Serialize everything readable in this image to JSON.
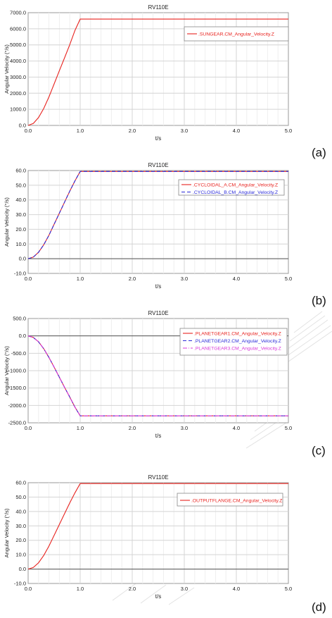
{
  "chart_data": [
    {
      "type": "line",
      "panel_label": "(a)",
      "title": "RV110E",
      "xlabel": "t/s",
      "ylabel": "Angular Velocity (°/s)",
      "xlim": [
        0,
        5
      ],
      "ylim": [
        0,
        7000
      ],
      "xticks": [
        "0.0",
        "1.0",
        "2.0",
        "3.0",
        "4.0",
        "5.0"
      ],
      "yticks": [
        "0.0",
        "1000.0",
        "2000.0",
        "3000.0",
        "4000.0",
        "5000.0",
        "6000.0",
        "7000.0"
      ],
      "grid": true,
      "legend_position": "top-right",
      "series": [
        {
          "name": ".SUNGEAR.CM_Angular_Velocity.Z",
          "color": "#e8231f",
          "dash": "solid",
          "x": [
            0,
            0.1,
            0.2,
            0.3,
            0.4,
            0.5,
            0.6,
            0.7,
            0.8,
            0.9,
            1.0,
            2.0,
            3.0,
            4.0,
            5.0
          ],
          "y": [
            0,
            126,
            490,
            1056,
            1770,
            2580,
            3400,
            4200,
            5020,
            5900,
            6600,
            6600,
            6600,
            6600,
            6600
          ]
        }
      ]
    },
    {
      "type": "line",
      "panel_label": "(b)",
      "title": "RV110E",
      "xlabel": "t/s",
      "ylabel": "Angular Velocity (°/s)",
      "xlim": [
        0,
        5
      ],
      "ylim": [
        -10,
        60
      ],
      "xticks": [
        "0.0",
        "1.0",
        "2.0",
        "3.0",
        "4.0",
        "5.0"
      ],
      "yticks": [
        "-10.0",
        "0.0",
        "10.0",
        "20.0",
        "30.0",
        "40.0",
        "50.0",
        "60.0"
      ],
      "grid": true,
      "legend_position": "top-right",
      "series": [
        {
          "name": ".CYCLOIDAL_A.CM_Angular_Velocity.Z",
          "color": "#e8231f",
          "dash": "solid",
          "x": [
            0,
            0.1,
            0.2,
            0.3,
            0.4,
            0.5,
            0.6,
            0.7,
            0.8,
            0.9,
            1.0,
            2.0,
            3.0,
            4.0,
            5.0
          ],
          "y": [
            0,
            1.1,
            4.4,
            9.5,
            16.0,
            23.5,
            31.0,
            38.5,
            46.0,
            53.0,
            59.4,
            59.4,
            59.4,
            59.4,
            59.4
          ]
        },
        {
          "name": ".CYCLOIDAL_B.CM_Angular_Velocity.Z",
          "color": "#2a2ad8",
          "dash": "dashed",
          "x": [
            0,
            0.1,
            0.2,
            0.3,
            0.4,
            0.5,
            0.6,
            0.7,
            0.8,
            0.9,
            1.0,
            2.0,
            3.0,
            4.0,
            5.0
          ],
          "y": [
            0,
            1.1,
            4.4,
            9.5,
            16.0,
            23.5,
            31.0,
            38.5,
            46.0,
            53.0,
            59.4,
            59.4,
            59.4,
            59.4,
            59.4
          ]
        }
      ]
    },
    {
      "type": "line",
      "panel_label": "(c)",
      "title": "RV110E",
      "xlabel": "t/s",
      "ylabel": "Angular Velocity (°/s)",
      "xlim": [
        0,
        5
      ],
      "ylim": [
        -2500,
        500
      ],
      "xticks": [
        "0.0",
        "1.0",
        "2.0",
        "3.0",
        "4.0",
        "5.0"
      ],
      "yticks": [
        "-2500.0",
        "-2000.0",
        "-1500.0",
        "-1000.0",
        "-500.0",
        "0.0",
        "500.0"
      ],
      "grid": true,
      "legend_position": "top-right",
      "series": [
        {
          "name": ".PLANETGEAR1.CM_Angular_Velocity.Z",
          "color": "#e8231f",
          "dash": "solid",
          "x": [
            0,
            0.1,
            0.2,
            0.3,
            0.4,
            0.5,
            0.6,
            0.7,
            0.8,
            0.9,
            1.0,
            2.0,
            3.0,
            4.0,
            5.0
          ],
          "y": [
            0,
            -45,
            -170,
            -370,
            -620,
            -900,
            -1190,
            -1480,
            -1760,
            -2050,
            -2300,
            -2300,
            -2300,
            -2300,
            -2300
          ]
        },
        {
          "name": ".PLANETGEAR2.CM_Angular_Velocity.Z",
          "color": "#2a2ad8",
          "dash": "dashed",
          "x": [
            0,
            0.1,
            0.2,
            0.3,
            0.4,
            0.5,
            0.6,
            0.7,
            0.8,
            0.9,
            1.0,
            2.0,
            3.0,
            4.0,
            5.0
          ],
          "y": [
            0,
            -45,
            -170,
            -370,
            -620,
            -900,
            -1190,
            -1480,
            -1760,
            -2050,
            -2300,
            -2300,
            -2300,
            -2300,
            -2300
          ]
        },
        {
          "name": ".PLANETGEAR3.CM_Angular_Velocity.Z",
          "color": "#d83ad8",
          "dash": "dotdash",
          "x": [
            0,
            0.1,
            0.2,
            0.3,
            0.4,
            0.5,
            0.6,
            0.7,
            0.8,
            0.9,
            1.0,
            2.0,
            3.0,
            4.0,
            5.0
          ],
          "y": [
            0,
            -45,
            -170,
            -370,
            -620,
            -900,
            -1190,
            -1480,
            -1760,
            -2050,
            -2300,
            -2300,
            -2300,
            -2300,
            -2300
          ]
        }
      ]
    },
    {
      "type": "line",
      "panel_label": "(d)",
      "title": "RV110E",
      "xlabel": "t/s",
      "ylabel": "Angular Velocity (°/s)",
      "xlim": [
        0,
        5
      ],
      "ylim": [
        -10,
        60
      ],
      "xticks": [
        "0.0",
        "1.0",
        "2.0",
        "3.0",
        "4.0",
        "5.0"
      ],
      "yticks": [
        "-10.0",
        "0.0",
        "10.0",
        "20.0",
        "30.0",
        "40.0",
        "50.0",
        "60.0"
      ],
      "grid": true,
      "legend_position": "top-right",
      "series": [
        {
          "name": ".OUTPUTFLANGE.CM_Angular_Velocity.Z",
          "color": "#e8231f",
          "dash": "solid",
          "x": [
            0,
            0.1,
            0.2,
            0.3,
            0.4,
            0.5,
            0.6,
            0.7,
            0.8,
            0.9,
            1.0,
            2.0,
            3.0,
            4.0,
            5.0
          ],
          "y": [
            0,
            1.1,
            4.4,
            9.5,
            16.0,
            23.5,
            31.0,
            38.5,
            46.0,
            53.0,
            59.4,
            59.4,
            59.4,
            59.4,
            59.4
          ]
        }
      ]
    }
  ]
}
